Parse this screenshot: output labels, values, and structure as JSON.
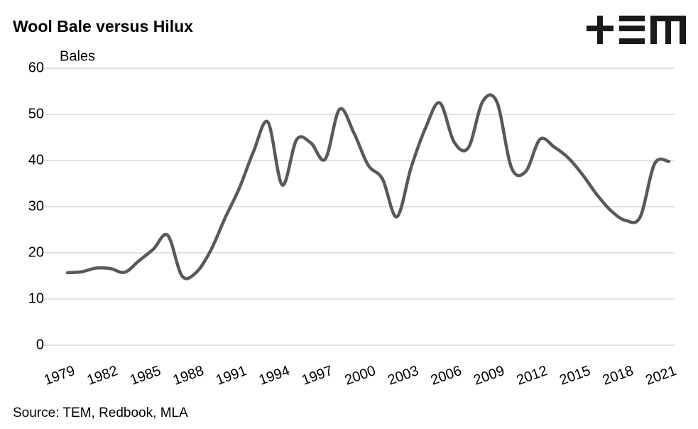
{
  "chart_data": {
    "type": "line",
    "title": "Wool Bale versus Hilux",
    "y_label": "Bales",
    "source": "Source: TEM, Redbook, MLA",
    "x": [
      1979,
      1980,
      1981,
      1982,
      1983,
      1984,
      1985,
      1986,
      1987,
      1988,
      1989,
      1990,
      1991,
      1992,
      1993,
      1994,
      1995,
      1996,
      1997,
      1998,
      1999,
      2000,
      2001,
      2002,
      2003,
      2004,
      2005,
      2006,
      2007,
      2008,
      2009,
      2010,
      2011,
      2012,
      2013,
      2014,
      2015,
      2016,
      2017,
      2018,
      2019,
      2020,
      2021
    ],
    "series": [
      {
        "name": "Bales",
        "color": "#595959",
        "values": [
          15.7,
          15.9,
          16.7,
          16.6,
          15.8,
          18.3,
          20.8,
          23.8,
          15.0,
          15.8,
          20.5,
          27.5,
          34,
          42,
          48.3,
          34.7,
          44.5,
          43.8,
          40.3,
          51.1,
          46,
          39,
          36,
          27.8,
          38.5,
          47,
          52.5,
          44,
          42.8,
          52.8,
          52.6,
          38.5,
          37.6,
          44.6,
          42.9,
          40.5,
          36.8,
          32.5,
          29,
          27,
          27.8,
          39.3,
          39.8
        ]
      }
    ],
    "xlim": [
      1979,
      2021
    ],
    "xticks": [
      1979,
      1982,
      1985,
      1988,
      1991,
      1994,
      1997,
      2000,
      2003,
      2006,
      2009,
      2012,
      2015,
      2018,
      2021
    ],
    "ylim": [
      0,
      60
    ],
    "yticks": [
      0,
      10,
      20,
      30,
      40,
      50,
      60
    ],
    "grid": true
  }
}
